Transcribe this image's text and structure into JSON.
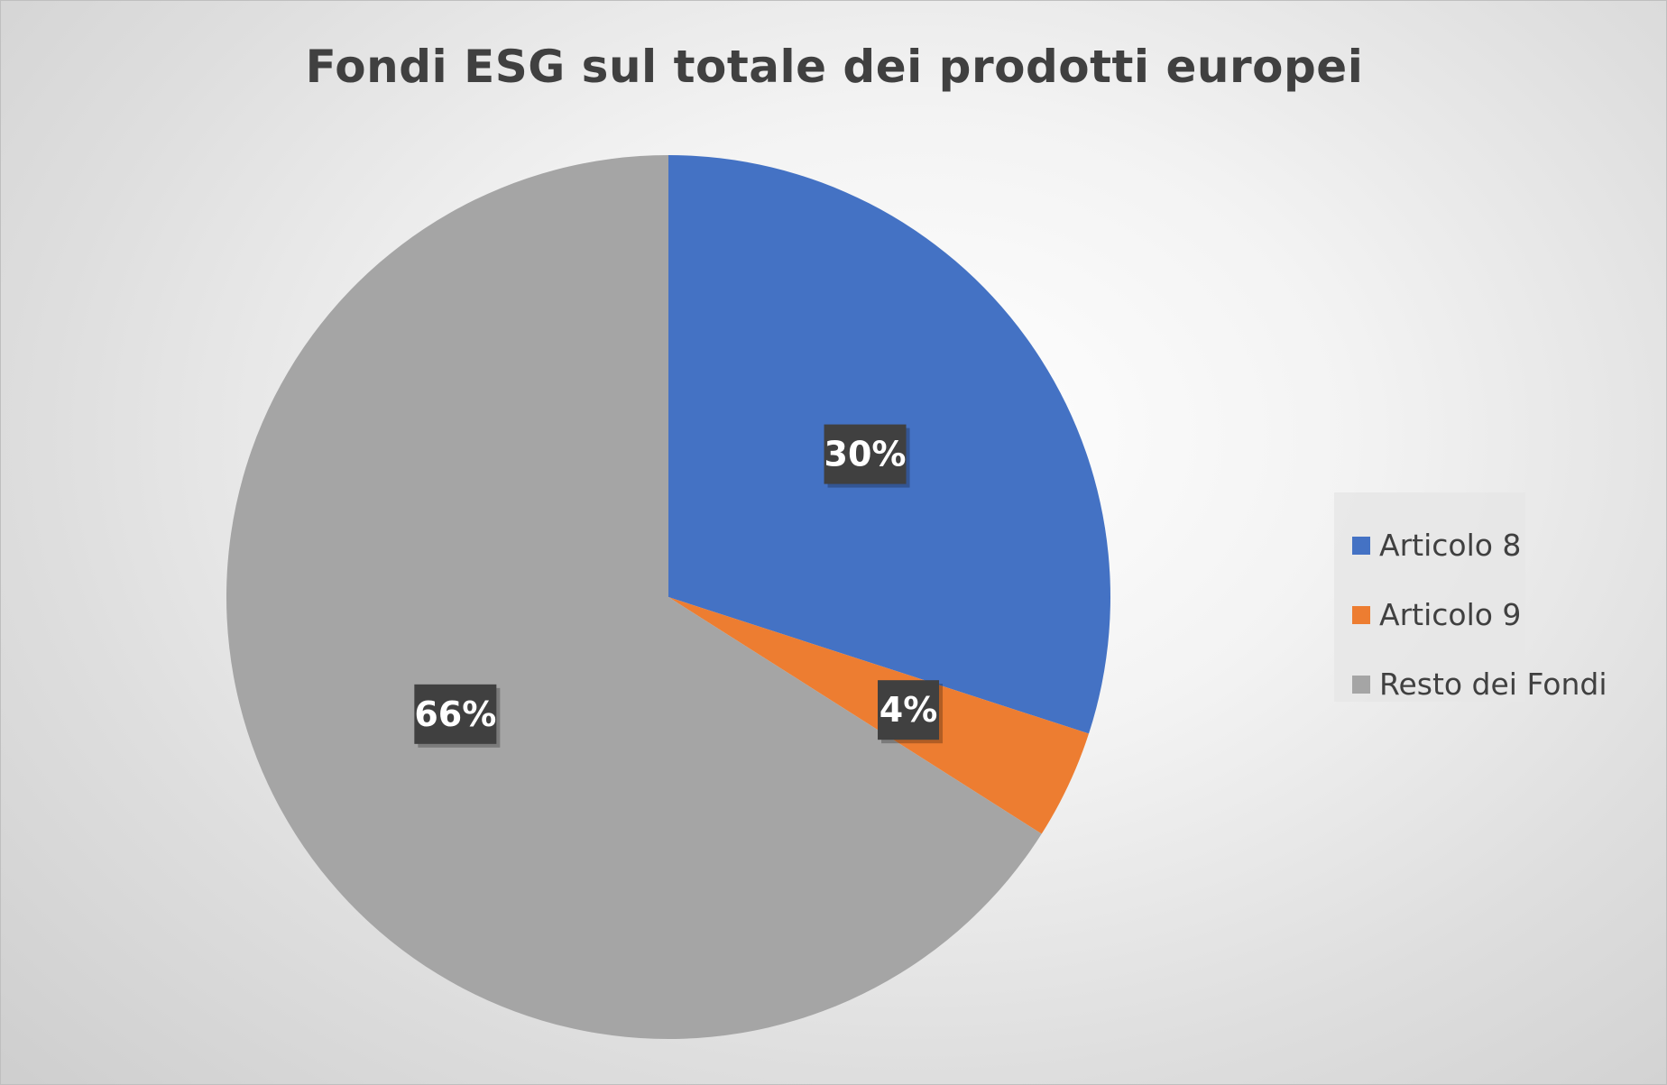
{
  "chart_data": {
    "type": "pie",
    "title": "Fondi ESG sul totale dei prodotti europei",
    "categories": [
      "Articolo 8",
      "Articolo 9",
      "Resto dei Fondi"
    ],
    "values": [
      30,
      4,
      66
    ],
    "data_labels": [
      "30%",
      "4%",
      "66%"
    ],
    "colors": [
      "#4472C4",
      "#ED7D31",
      "#A5A5A5"
    ],
    "start_angle_deg": 0,
    "direction": "clockwise",
    "legend_position": "right",
    "grid": false
  }
}
